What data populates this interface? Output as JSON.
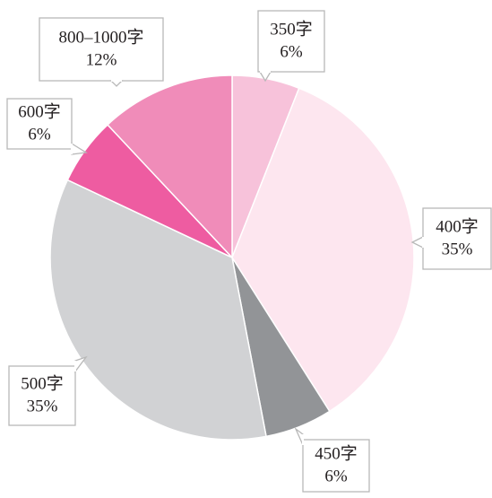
{
  "chart_data": {
    "type": "pie",
    "categories": [
      "350字",
      "400字",
      "450字",
      "500字",
      "600字",
      "800–1000字"
    ],
    "values": [
      6,
      35,
      6,
      35,
      6,
      12
    ],
    "value_labels": [
      "6%",
      "35%",
      "6%",
      "35%",
      "6%",
      "12%"
    ],
    "colors": [
      "#f7c2da",
      "#fde6ef",
      "#929497",
      "#d1d2d4",
      "#ee5ca1",
      "#f08cb9"
    ]
  }
}
